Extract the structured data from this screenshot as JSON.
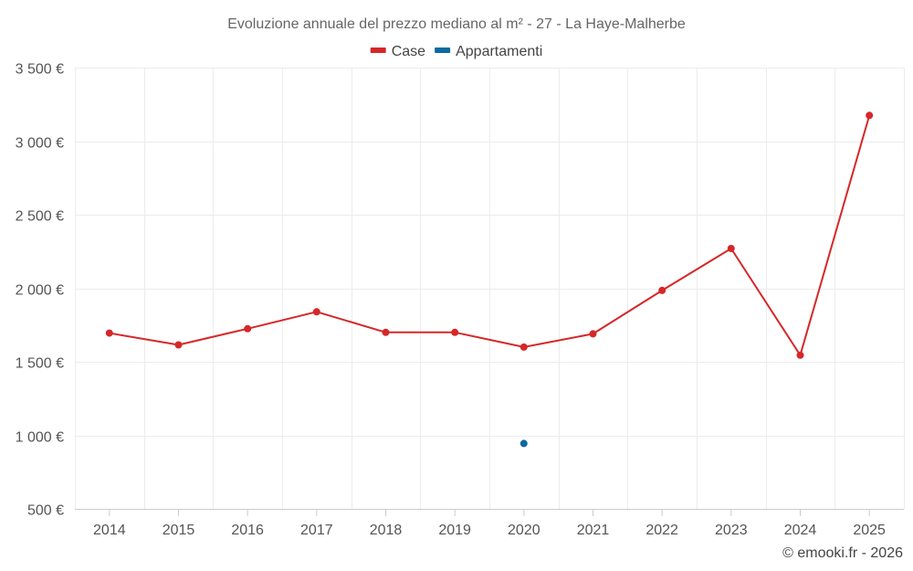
{
  "chart_data": {
    "type": "line",
    "title": "Evoluzione annuale del prezzo mediano al m² - 27 - La Haye-Malherbe",
    "xlabel": "",
    "ylabel": "",
    "categories": [
      "2014",
      "2015",
      "2016",
      "2017",
      "2018",
      "2019",
      "2020",
      "2021",
      "2022",
      "2023",
      "2024",
      "2025"
    ],
    "ylim": [
      500,
      3500
    ],
    "yticks": [
      500,
      1000,
      1500,
      2000,
      2500,
      3000,
      3500
    ],
    "ytick_labels": [
      "500 €",
      "1 000 €",
      "1 500 €",
      "2 000 €",
      "2 500 €",
      "3 000 €",
      "3 500 €"
    ],
    "grid": true,
    "legend_position": "top-center",
    "series": [
      {
        "name": "Case",
        "color": "#d62728",
        "values": [
          1695,
          1615,
          1725,
          1840,
          1700,
          1700,
          1600,
          1690,
          1985,
          2270,
          1545,
          3175
        ]
      },
      {
        "name": "Appartamenti",
        "color": "#0a6aa1",
        "values": [
          null,
          null,
          null,
          null,
          null,
          null,
          945,
          null,
          null,
          null,
          null,
          null
        ]
      }
    ]
  },
  "credit": "© emooki.fr - 2026"
}
